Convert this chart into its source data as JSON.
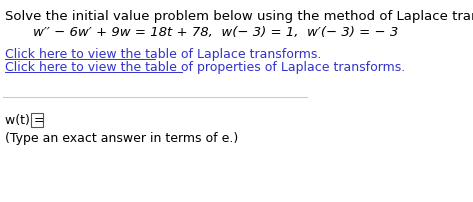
{
  "bg_color": "#ffffff",
  "text_color": "#000000",
  "link_color": "#3333cc",
  "line1": "Solve the initial value problem below using the method of Laplace transforms.",
  "line2": "w′′ − 6w′ + 9w = 18t + 78,  w(− 3) = 1,  w′(− 3) = − 3",
  "link1": "Click here to view the table of Laplace transforms.",
  "link2": "Click here to view the table of properties of Laplace transforms.",
  "line_wt": "w(t) = ",
  "line_type": "(Type an exact answer in terms of e.)",
  "font_size_main": 9.5,
  "font_size_eq": 9.5,
  "font_size_link": 9.0,
  "font_size_bottom": 9.0
}
